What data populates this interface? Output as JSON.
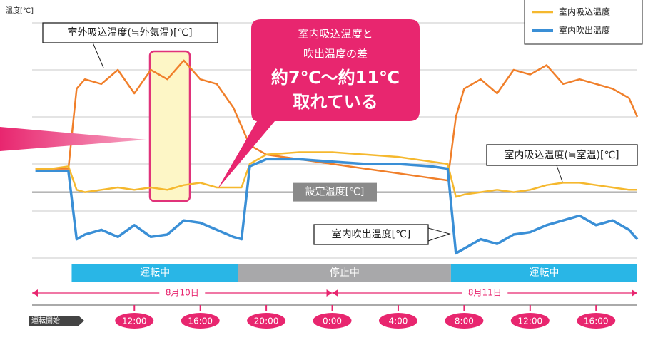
{
  "chart_data": {
    "type": "line",
    "y_label": "温度[℃]",
    "x": [
      6,
      7,
      8,
      8.5,
      9,
      10,
      11,
      12,
      13,
      14,
      15,
      16,
      17,
      18,
      18.5,
      19,
      20,
      22,
      24,
      26,
      28,
      30,
      31,
      31.5,
      32,
      33,
      34,
      35,
      36,
      37,
      38,
      39,
      40,
      41,
      42,
      42.5
    ],
    "series": [
      {
        "color": "#f07f2a",
        "values": [
          29,
          29,
          29,
          46,
          48,
          47,
          50,
          45,
          50,
          48,
          52,
          48,
          47,
          42,
          38,
          34,
          32,
          31,
          30,
          29,
          28,
          27,
          26.5,
          40,
          46,
          48,
          45,
          50,
          49,
          51,
          47,
          48,
          47,
          46,
          44,
          40
        ]
      },
      {
        "name": "室内吸込温度",
        "color": "#f5b82e",
        "values": [
          29,
          29,
          29.5,
          24.5,
          24,
          24.5,
          25,
          24.5,
          25,
          24.5,
          25.5,
          26,
          25,
          25,
          25,
          30,
          32,
          32.5,
          32.5,
          32,
          31.5,
          30.5,
          30,
          23,
          23.5,
          24,
          24.5,
          24,
          24.5,
          25.5,
          26,
          26,
          25.5,
          25,
          24.5,
          24.5
        ]
      },
      {
        "name": "室内吹出温度",
        "color": "#3a8fd6",
        "values": [
          28.5,
          28.5,
          28.5,
          14,
          15,
          16,
          14.5,
          17,
          14.5,
          15,
          18,
          17.5,
          16,
          14.5,
          14,
          29.5,
          31,
          31,
          30.5,
          30,
          30,
          29.5,
          29,
          11,
          12,
          14,
          13,
          15,
          15.5,
          17,
          18,
          19,
          17,
          18,
          16,
          14
        ]
      }
    ],
    "xlim": [
      5.8,
      42.5
    ],
    "xticks": [
      {
        "value": 12,
        "label": "12:00"
      },
      {
        "value": 16,
        "label": "16:00"
      },
      {
        "value": 20,
        "label": "20:00"
      },
      {
        "value": 24,
        "label": "0:00"
      },
      {
        "value": 28,
        "label": "4:00"
      },
      {
        "value": 32,
        "label": "8:00"
      },
      {
        "value": 36,
        "label": "12:00"
      },
      {
        "value": 40,
        "label": "16:00"
      }
    ],
    "ylim": [
      0,
      60
    ],
    "yticks": [
      0,
      10,
      20,
      30,
      40,
      50,
      60
    ],
    "grid": true,
    "setpoint": 24,
    "setpoint_label": "設定温度[℃]",
    "phases": [
      {
        "label": "運転中",
        "start": 8.2,
        "end": 18.3
      },
      {
        "label": "停止中",
        "start": 18.3,
        "end": 31.2
      },
      {
        "label": "運転中",
        "start": 31.2,
        "end": 42.5
      }
    ],
    "dates": [
      {
        "label": "8月10日",
        "start": 5.8,
        "end": 24
      },
      {
        "label": "8月11日",
        "start": 24,
        "end": 42.5
      }
    ],
    "start_label": "運転開始",
    "annotations": {
      "outdoor": "室外吸込温度(≒外気温)[℃]",
      "intake": "室内吸込温度(≒室温)[℃]",
      "outlet": "室内吹出温度[℃]",
      "callout": [
        "室内吸込温度と",
        "吹出温度の差",
        "約7℃〜約11℃",
        "取れている"
      ]
    }
  }
}
